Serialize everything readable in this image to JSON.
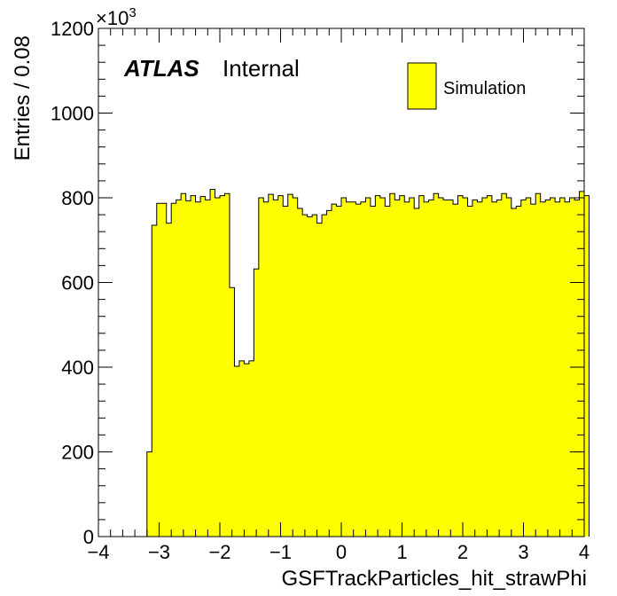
{
  "chart_data": {
    "type": "bar",
    "xlabel": "GSFTrackParticles_hit_strawPhi",
    "ylabel": "Entries / 0.08",
    "y_multiplier": "×10",
    "y_multiplier_exp": "3",
    "xlim": [
      -4,
      4
    ],
    "ylim": [
      0,
      1200
    ],
    "x_ticks": [
      -4,
      -3,
      -2,
      -1,
      0,
      1,
      2,
      3,
      4
    ],
    "x_tick_labels": [
      "−4",
      "−3",
      "−2",
      "−1",
      "0",
      "1",
      "2",
      "3",
      "4"
    ],
    "y_ticks": [
      0,
      200,
      400,
      600,
      800,
      1000,
      1200
    ],
    "y_tick_labels": [
      "0",
      "200",
      "400",
      "600",
      "800",
      "1000",
      "1200"
    ],
    "bin_width": 0.08,
    "x_start": -3.2,
    "values": [
      200,
      735,
      787,
      787,
      740,
      787,
      795,
      810,
      793,
      805,
      790,
      803,
      795,
      820,
      800,
      805,
      810,
      588,
      402,
      415,
      408,
      415,
      632,
      800,
      790,
      808,
      795,
      805,
      780,
      808,
      800,
      775,
      760,
      755,
      760,
      740,
      760,
      770,
      785,
      780,
      800,
      790,
      790,
      785,
      790,
      800,
      780,
      805,
      800,
      780,
      810,
      795,
      805,
      790,
      800,
      775,
      805,
      790,
      795,
      810,
      800,
      795,
      795,
      785,
      805,
      800,
      780,
      795,
      790,
      800,
      805,
      790,
      795,
      810,
      800,
      775,
      780,
      795,
      800,
      785,
      810,
      790,
      795,
      800,
      790,
      800,
      790,
      800,
      795,
      815,
      805
    ],
    "legend": {
      "label": "Simulation",
      "placement": "top-right"
    },
    "annotation": {
      "atlas": "ATLAS",
      "status": "Internal"
    },
    "colors": {
      "fill": "#ffff00",
      "line": "#000000"
    }
  }
}
